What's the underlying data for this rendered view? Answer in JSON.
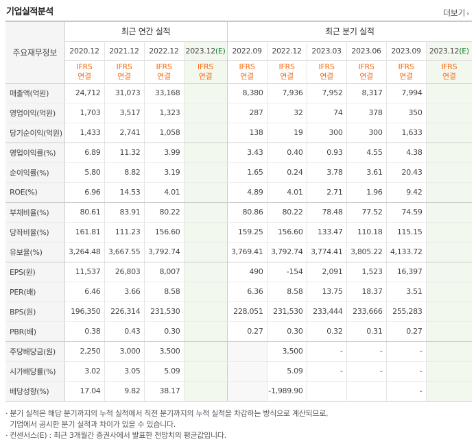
{
  "title": "기업실적분석",
  "more_label": "더보기",
  "header": {
    "row_label": "주요재무정보",
    "annual_label": "최근 연간 실적",
    "quarter_label": "최근 분기 실적",
    "annual_periods": [
      "2020.12",
      "2021.12",
      "2022.12",
      "2023.12"
    ],
    "annual_est_suffix": "(E)",
    "quarter_periods": [
      "2022.09",
      "2022.12",
      "2023.03",
      "2023.06",
      "2023.09",
      "2023.12"
    ],
    "quarter_est_suffix": "(E)",
    "ifrs_top": "IFRS",
    "ifrs_bottom": "연결"
  },
  "rows": [
    {
      "label": "매출액(억원)",
      "annual": [
        "24,712",
        "31,073",
        "33,168",
        ""
      ],
      "quarter": [
        "8,380",
        "7,936",
        "7,952",
        "8,317",
        "7,994",
        ""
      ]
    },
    {
      "label": "영업이익(억원)",
      "annual": [
        "1,703",
        "3,517",
        "1,323",
        ""
      ],
      "quarter": [
        "287",
        "32",
        "74",
        "378",
        "350",
        ""
      ]
    },
    {
      "label": "당기순이익(억원)",
      "annual": [
        "1,433",
        "2,741",
        "1,058",
        ""
      ],
      "quarter": [
        "138",
        "19",
        "300",
        "300",
        "1,633",
        ""
      ]
    },
    {
      "label": "영업이익률(%)",
      "annual": [
        "6.89",
        "11.32",
        "3.99",
        ""
      ],
      "quarter": [
        "3.43",
        "0.40",
        "0.93",
        "4.55",
        "4.38",
        ""
      ]
    },
    {
      "label": "순이익률(%)",
      "annual": [
        "5.80",
        "8.82",
        "3.19",
        ""
      ],
      "quarter": [
        "1.65",
        "0.24",
        "3.78",
        "3.61",
        "20.43",
        ""
      ]
    },
    {
      "label": "ROE(%)",
      "annual": [
        "6.96",
        "14.53",
        "4.01",
        ""
      ],
      "quarter": [
        "4.89",
        "4.01",
        "2.71",
        "1.96",
        "9.42",
        ""
      ]
    },
    {
      "label": "부채비율(%)",
      "annual": [
        "80.61",
        "83.91",
        "80.22",
        ""
      ],
      "quarter": [
        "80.86",
        "80.22",
        "78.48",
        "77.52",
        "74.59",
        ""
      ]
    },
    {
      "label": "당좌비율(%)",
      "annual": [
        "161.81",
        "111.23",
        "156.60",
        ""
      ],
      "quarter": [
        "159.25",
        "156.60",
        "133.47",
        "110.18",
        "115.15",
        ""
      ]
    },
    {
      "label": "유보율(%)",
      "annual": [
        "3,264.48",
        "3,667.55",
        "3,792.74",
        ""
      ],
      "quarter": [
        "3,769.41",
        "3,792.74",
        "3,774.41",
        "3,805.22",
        "4,133.72",
        ""
      ]
    },
    {
      "label": "EPS(원)",
      "annual": [
        "11,537",
        "26,803",
        "8,007",
        ""
      ],
      "quarter": [
        "490",
        "-154",
        "2,091",
        "1,523",
        "16,397",
        ""
      ]
    },
    {
      "label": "PER(배)",
      "annual": [
        "6.46",
        "3.66",
        "8.58",
        ""
      ],
      "quarter": [
        "6.36",
        "8.58",
        "13.75",
        "18.37",
        "3.51",
        ""
      ]
    },
    {
      "label": "BPS(원)",
      "annual": [
        "196,350",
        "226,314",
        "231,530",
        ""
      ],
      "quarter": [
        "228,051",
        "231,530",
        "233,444",
        "233,666",
        "255,283",
        ""
      ]
    },
    {
      "label": "PBR(배)",
      "annual": [
        "0.38",
        "0.43",
        "0.30",
        ""
      ],
      "quarter": [
        "0.27",
        "0.30",
        "0.32",
        "0.31",
        "0.27",
        ""
      ]
    },
    {
      "label": "주당배당금(원)",
      "annual": [
        "2,250",
        "3,000",
        "3,500",
        ""
      ],
      "quarter": [
        "",
        "3,500",
        "-",
        "-",
        "-",
        ""
      ]
    },
    {
      "label": "시가배당률(%)",
      "annual": [
        "3.02",
        "3.05",
        "5.09",
        ""
      ],
      "quarter": [
        "",
        "5.09",
        "-",
        "-",
        "-",
        ""
      ]
    },
    {
      "label": "배당성향(%)",
      "annual": [
        "17.04",
        "9.82",
        "38.17",
        ""
      ],
      "quarter": [
        "",
        "-1,989.90",
        "",
        "",
        "-",
        ""
      ]
    }
  ],
  "notes": [
    "· 분기 실적은 해당 분기까지의 누적 실적에서 직전 분기까지의 누적 실적을 차감하는 방식으로 계산되므로,",
    "  기업에서 공시한 분기 실적과 차이가 있을 수 있습니다.",
    "· 컨센서스(E) : 최근 3개월간 증권사에서 발표한 전망치의 평균값입니다."
  ]
}
